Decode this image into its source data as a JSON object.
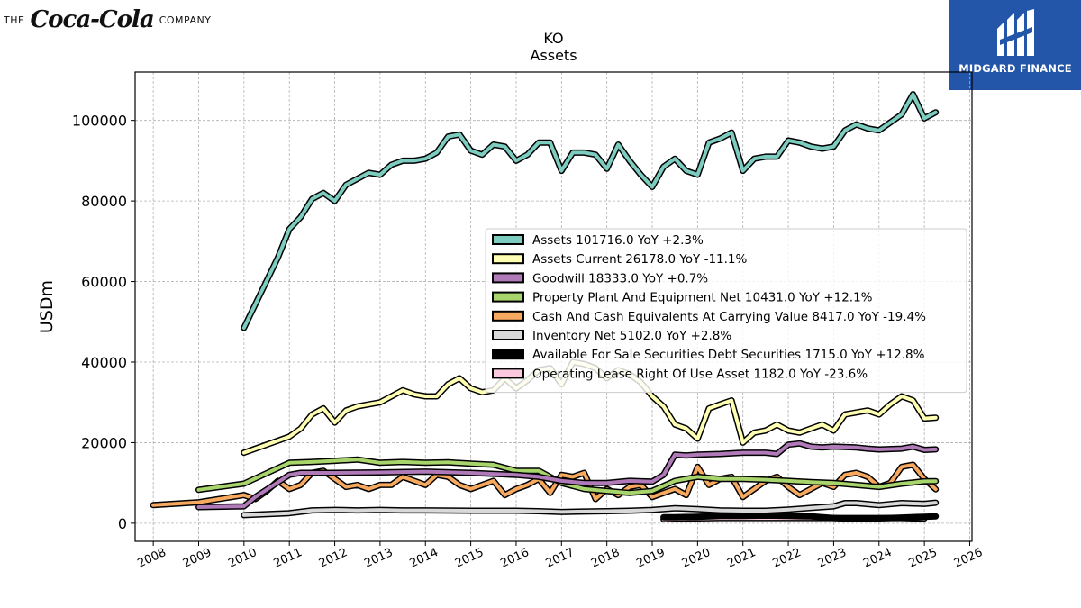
{
  "branding": {
    "left": {
      "prefix": "THE",
      "script": "Coca-Cola",
      "suffix": "COMPANY"
    },
    "right": {
      "name": "MIDGARD FINANCE",
      "color": "#2356a8"
    }
  },
  "chart_data": {
    "type": "line",
    "title": "KO",
    "subtitle": "Assets",
    "xlabel": "",
    "ylabel": "USDm",
    "xlim": [
      2007.6,
      2026.05
    ],
    "ylim": [
      -4500,
      112000
    ],
    "yticks": [
      0,
      20000,
      40000,
      60000,
      80000,
      100000
    ],
    "xticks": [
      2008,
      2009,
      2010,
      2011,
      2012,
      2013,
      2014,
      2015,
      2016,
      2017,
      2018,
      2019,
      2020,
      2021,
      2022,
      2023,
      2024,
      2025,
      2026
    ],
    "grid": true,
    "legend_position": "center-right",
    "series": [
      {
        "name": "Assets",
        "legend": "Assets  101716.0 YoY +2.3%",
        "color": "#7ccdc0",
        "x": [
          2010.0,
          2010.75,
          2011.0,
          2011.25,
          2011.5,
          2011.75,
          2012.0,
          2012.25,
          2012.5,
          2012.75,
          2013.0,
          2013.25,
          2013.5,
          2013.75,
          2014.0,
          2014.25,
          2014.5,
          2014.75,
          2015.0,
          2015.25,
          2015.5,
          2015.75,
          2016.0,
          2016.25,
          2016.5,
          2016.75,
          2017.0,
          2017.25,
          2017.5,
          2017.75,
          2018.0,
          2018.25,
          2018.5,
          2018.75,
          2019.0,
          2019.25,
          2019.5,
          2019.75,
          2020.0,
          2020.25,
          2020.5,
          2020.75,
          2021.0,
          2021.25,
          2021.5,
          2021.75,
          2022.0,
          2022.25,
          2022.5,
          2022.75,
          2023.0,
          2023.25,
          2023.5,
          2023.75,
          2024.0,
          2024.25,
          2024.5,
          2024.75,
          2025.0,
          2025.25
        ],
        "y": [
          48500,
          66000,
          73000,
          76000,
          80500,
          82000,
          80000,
          84000,
          85500,
          87000,
          86500,
          89000,
          90000,
          90000,
          90500,
          92000,
          96000,
          96500,
          92500,
          91500,
          94000,
          93500,
          90000,
          91500,
          94500,
          94500,
          87500,
          92000,
          92000,
          91500,
          88000,
          94000,
          90000,
          86500,
          83500,
          88500,
          90500,
          87500,
          86500,
          94500,
          95500,
          97000,
          87500,
          90500,
          91000,
          91000,
          95000,
          94500,
          93500,
          93000,
          93500,
          97500,
          99000,
          98000,
          97500,
          99500,
          101500,
          106500,
          100500,
          102000
        ]
      },
      {
        "name": "Assets Current",
        "legend": "Assets Current  26178.0 YoY -11.1%",
        "color": "#ffffb3",
        "x": [
          2010.0,
          2010.75,
          2011.0,
          2011.25,
          2011.5,
          2011.75,
          2012.0,
          2012.25,
          2012.5,
          2012.75,
          2013.0,
          2013.25,
          2013.5,
          2013.75,
          2014.0,
          2014.25,
          2014.5,
          2014.75,
          2015.0,
          2015.25,
          2015.5,
          2015.75,
          2016.0,
          2016.25,
          2016.5,
          2016.75,
          2017.0,
          2017.25,
          2017.5,
          2017.75,
          2018.0,
          2018.25,
          2018.5,
          2018.75,
          2019.0,
          2019.25,
          2019.5,
          2019.75,
          2020.0,
          2020.25,
          2020.5,
          2020.75,
          2021.0,
          2021.25,
          2021.5,
          2021.75,
          2022.0,
          2022.25,
          2022.5,
          2022.75,
          2023.0,
          2023.25,
          2023.5,
          2023.75,
          2024.0,
          2024.25,
          2024.5,
          2024.75,
          2025.0,
          2025.25
        ],
        "y": [
          17500,
          20500,
          21500,
          23500,
          27000,
          28500,
          25000,
          28000,
          29000,
          29500,
          30000,
          31500,
          33000,
          32000,
          31500,
          31500,
          34500,
          36000,
          33500,
          32500,
          33000,
          36000,
          33500,
          35500,
          38000,
          38500,
          34500,
          40000,
          39500,
          38500,
          36000,
          38000,
          37000,
          35000,
          31500,
          29000,
          24500,
          23500,
          21000,
          28500,
          29500,
          30500,
          20000,
          22500,
          23000,
          24500,
          23000,
          22500,
          23500,
          24500,
          23000,
          27000,
          27500,
          28000,
          27000,
          29500,
          31500,
          30500,
          26000,
          26178
        ]
      },
      {
        "name": "Goodwill",
        "legend": "Goodwill  18333.0 YoY +0.7%",
        "color": "#b07ab8",
        "x": [
          2009.0,
          2010.0,
          2010.25,
          2011.0,
          2011.25,
          2012.0,
          2013.0,
          2014.0,
          2015.0,
          2016.0,
          2016.5,
          2017.0,
          2017.5,
          2018.0,
          2018.5,
          2019.0,
          2019.25,
          2019.5,
          2019.75,
          2020.0,
          2020.5,
          2021.0,
          2021.5,
          2021.75,
          2022.0,
          2022.25,
          2022.5,
          2022.75,
          2023.0,
          2023.5,
          2023.75,
          2024.0,
          2024.5,
          2024.75,
          2025.0,
          2025.25
        ],
        "y": [
          4000,
          4200,
          6500,
          12000,
          12500,
          12500,
          12600,
          12800,
          12500,
          12000,
          11500,
          10500,
          10000,
          10000,
          10500,
          10300,
          12000,
          17000,
          16800,
          17000,
          17200,
          17500,
          17500,
          17200,
          19500,
          19800,
          19000,
          18800,
          19000,
          18800,
          18500,
          18300,
          18500,
          19000,
          18200,
          18333
        ]
      },
      {
        "name": "Property Plant And Equipment Net",
        "legend": "Property Plant And Equipment Net  10431.0 YoY +12.1%",
        "color": "#a8d56b",
        "x": [
          2009.0,
          2010.0,
          2011.0,
          2011.5,
          2012.0,
          2012.5,
          2013.0,
          2013.5,
          2014.0,
          2014.5,
          2015.0,
          2015.5,
          2016.0,
          2016.5,
          2017.0,
          2017.5,
          2018.0,
          2018.5,
          2019.0,
          2019.5,
          2020.0,
          2020.5,
          2021.0,
          2021.5,
          2022.0,
          2022.5,
          2023.0,
          2023.5,
          2024.0,
          2024.5,
          2025.0,
          2025.25
        ],
        "y": [
          8300,
          9800,
          15000,
          15200,
          15500,
          15800,
          15000,
          15200,
          15000,
          15100,
          14800,
          14500,
          13000,
          13000,
          10000,
          8500,
          8000,
          7500,
          8000,
          10500,
          11500,
          11000,
          11000,
          10800,
          10500,
          10200,
          10000,
          9500,
          9000,
          9800,
          10400,
          10431
        ]
      },
      {
        "name": "Cash And Cash Equivalents At Carrying Value",
        "legend": "Cash And Cash Equivalents At Carrying Value  8417.0 YoY -19.4%",
        "color": "#f8a960",
        "x": [
          2008.0,
          2009.0,
          2010.0,
          2010.25,
          2010.5,
          2010.75,
          2011.0,
          2011.25,
          2011.5,
          2011.75,
          2012.0,
          2012.25,
          2012.5,
          2012.75,
          2013.0,
          2013.25,
          2013.5,
          2013.75,
          2014.0,
          2014.25,
          2014.5,
          2014.75,
          2015.0,
          2015.25,
          2015.5,
          2015.75,
          2016.0,
          2016.25,
          2016.5,
          2016.75,
          2017.0,
          2017.25,
          2017.5,
          2017.75,
          2018.0,
          2018.25,
          2018.5,
          2018.75,
          2019.0,
          2019.25,
          2019.5,
          2019.75,
          2020.0,
          2020.25,
          2020.5,
          2020.75,
          2021.0,
          2021.25,
          2021.5,
          2021.75,
          2022.0,
          2022.25,
          2022.5,
          2022.75,
          2023.0,
          2023.25,
          2023.5,
          2023.75,
          2024.0,
          2024.25,
          2024.5,
          2024.75,
          2025.0,
          2025.25
        ],
        "y": [
          4500,
          5200,
          7000,
          6000,
          8000,
          10500,
          8500,
          9500,
          12500,
          13000,
          11000,
          9000,
          9500,
          8500,
          9500,
          9500,
          11500,
          10500,
          9500,
          12000,
          11500,
          9500,
          8500,
          9500,
          10500,
          7000,
          8500,
          9500,
          11000,
          7500,
          12000,
          11500,
          12500,
          6000,
          8500,
          7000,
          9000,
          9500,
          6500,
          7500,
          8500,
          7000,
          14000,
          9500,
          11000,
          11500,
          6500,
          8500,
          10500,
          11500,
          9000,
          7000,
          8500,
          10000,
          9000,
          12000,
          12500,
          11500,
          9000,
          10000,
          14000,
          14500,
          11000,
          8417
        ]
      },
      {
        "name": "Inventory Net",
        "legend": "Inventory Net  5102.0 YoY +2.8%",
        "color": "#d9d9d9",
        "x": [
          2010.0,
          2011.0,
          2011.5,
          2012.0,
          2012.5,
          2013.0,
          2013.5,
          2014.0,
          2015.0,
          2016.0,
          2016.5,
          2017.0,
          2017.5,
          2018.0,
          2018.5,
          2019.0,
          2019.5,
          2020.0,
          2020.5,
          2021.0,
          2021.5,
          2022.0,
          2022.5,
          2023.0,
          2023.25,
          2023.5,
          2024.0,
          2024.5,
          2025.0,
          2025.25
        ],
        "y": [
          2000,
          2500,
          3200,
          3300,
          3200,
          3300,
          3200,
          3200,
          3100,
          3100,
          3000,
          2800,
          2900,
          3000,
          3100,
          3300,
          3700,
          3500,
          3200,
          3100,
          3100,
          3400,
          3800,
          4200,
          5000,
          5000,
          4500,
          5000,
          4800,
          5102
        ]
      },
      {
        "name": "Available For Sale Securities Debt Securities",
        "legend": "Available For Sale Securities Debt Securities  1715.0 YoY +12.8%",
        "color": "#000000",
        "x": [
          2019.25,
          2019.5,
          2020.0,
          2020.5,
          2021.0,
          2021.5,
          2022.0,
          2022.5,
          2023.0,
          2023.5,
          2024.0,
          2024.5,
          2025.0,
          2025.25
        ],
        "y": [
          1500,
          1500,
          1600,
          1800,
          1800,
          1900,
          1800,
          1700,
          1300,
          1000,
          1200,
          1400,
          1600,
          1715
        ]
      },
      {
        "name": "Operating Lease Right Of Use Asset",
        "legend": "Operating Lease Right Of Use Asset  1182.0 YoY -23.6%",
        "color": "#fbc8dd",
        "x": [
          2019.25,
          2019.5,
          2020.0,
          2020.5,
          2021.0,
          2021.5,
          2022.0,
          2022.5,
          2023.0,
          2023.5,
          2024.0,
          2024.5,
          2024.75,
          2025.0
        ],
        "y": [
          1000,
          1100,
          1200,
          1300,
          1300,
          1300,
          1300,
          1300,
          1300,
          1300,
          1300,
          1300,
          1200,
          1182
        ]
      }
    ]
  }
}
